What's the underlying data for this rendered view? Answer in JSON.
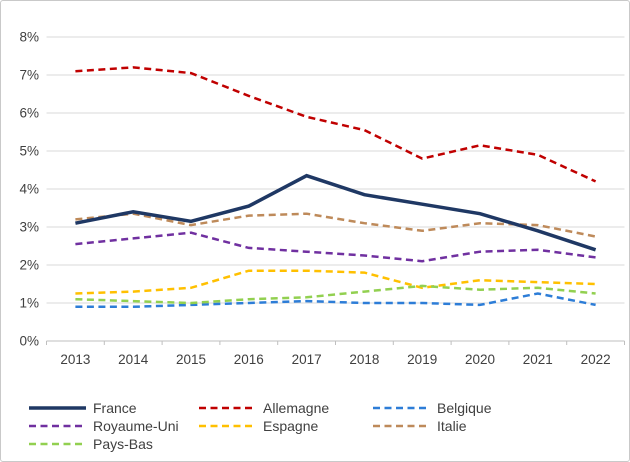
{
  "chart_data": {
    "type": "line",
    "title": "",
    "xlabel": "",
    "ylabel": "",
    "x": [
      "2013",
      "2014",
      "2015",
      "2016",
      "2017",
      "2018",
      "2019",
      "2020",
      "2021",
      "2022"
    ],
    "series": [
      {
        "name": "France",
        "color": "#1F3864",
        "dash": "solid",
        "width": 3.5,
        "values": [
          3.1,
          3.4,
          3.15,
          3.55,
          4.35,
          3.85,
          3.6,
          3.35,
          2.9,
          2.4
        ]
      },
      {
        "name": "Allemagne",
        "color": "#C00000",
        "dash": "dashed",
        "width": 2.5,
        "values": [
          7.1,
          7.2,
          7.05,
          6.45,
          5.9,
          5.55,
          4.8,
          5.15,
          4.9,
          4.2
        ]
      },
      {
        "name": "Belgique",
        "color": "#2D7DD7",
        "dash": "dashed",
        "width": 2.5,
        "values": [
          0.9,
          0.9,
          0.95,
          1.0,
          1.05,
          1.0,
          1.0,
          0.95,
          1.25,
          0.95
        ]
      },
      {
        "name": "Royaume-Uni",
        "color": "#7030A0",
        "dash": "dashed",
        "width": 2.5,
        "values": [
          2.55,
          2.7,
          2.85,
          2.45,
          2.35,
          2.25,
          2.1,
          2.35,
          2.4,
          2.2
        ]
      },
      {
        "name": "Espagne",
        "color": "#FFC000",
        "dash": "dashed",
        "width": 2.5,
        "values": [
          1.25,
          1.3,
          1.4,
          1.85,
          1.85,
          1.8,
          1.4,
          1.6,
          1.55,
          1.5
        ]
      },
      {
        "name": "Italie",
        "color": "#BE8A5A",
        "dash": "dashed",
        "width": 2.5,
        "values": [
          3.2,
          3.35,
          3.05,
          3.3,
          3.35,
          3.1,
          2.9,
          3.1,
          3.05,
          2.75
        ]
      },
      {
        "name": "Pays-Bas",
        "color": "#92D050",
        "dash": "dashed",
        "width": 2.5,
        "values": [
          1.1,
          1.05,
          1.0,
          1.1,
          1.15,
          1.3,
          1.45,
          1.35,
          1.4,
          1.25
        ]
      }
    ],
    "ylim": [
      0,
      8
    ],
    "y_ticks": [
      "0%",
      "1%",
      "2%",
      "3%",
      "4%",
      "5%",
      "6%",
      "7%",
      "8%"
    ],
    "grid": true,
    "gridline_color": "#D9D9D9",
    "axis_line_color": "#BFBFBF",
    "tick_label_color": "#404040",
    "legend_position": "bottom",
    "legend_order": [
      "France",
      "Allemagne",
      "Belgique",
      "Royaume-Uni",
      "Espagne",
      "Italie",
      "Pays-Bas"
    ],
    "legend_columns": 3
  }
}
